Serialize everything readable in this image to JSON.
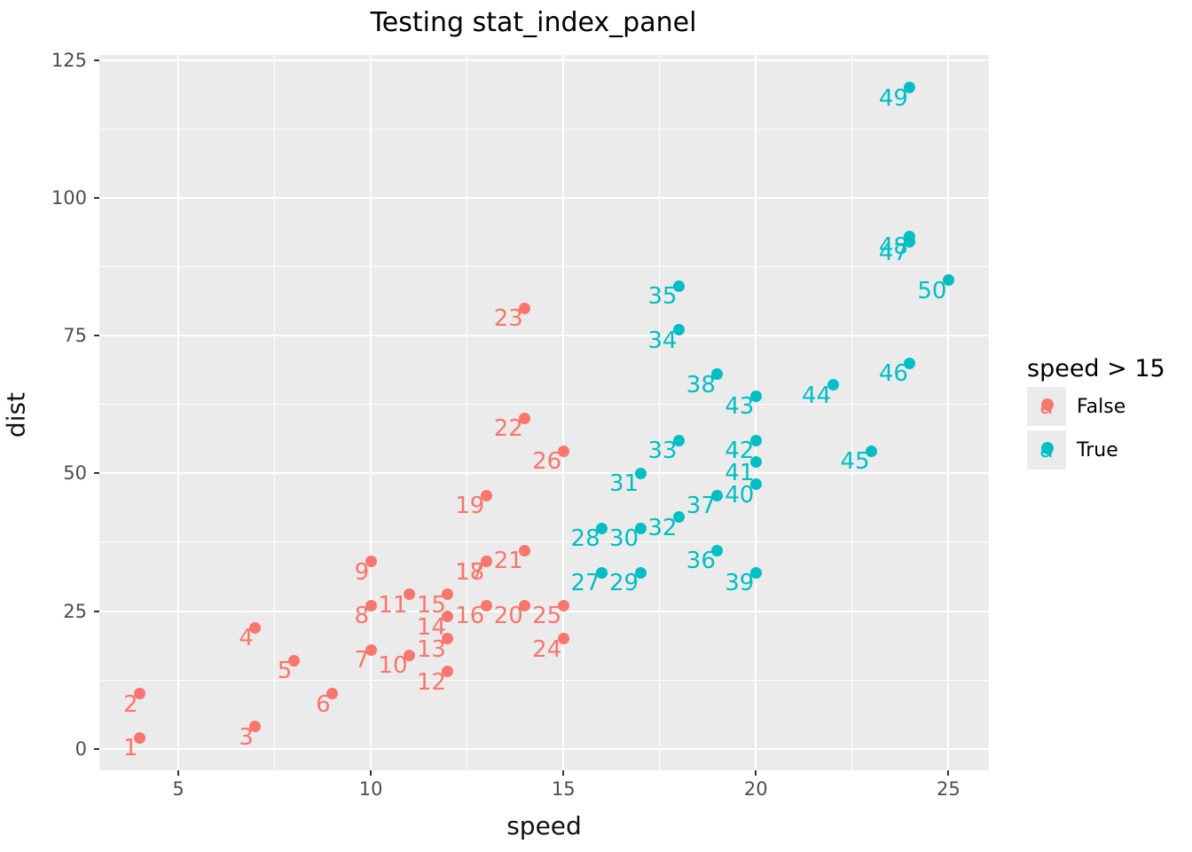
{
  "title": "Testing stat_index_panel",
  "legend": {
    "title": "speed > 15",
    "key_glyph": "a"
  },
  "colors": {
    "false_group": "#F8766D",
    "true_group": "#00BFC4",
    "panel_background": "#EBEBEB",
    "gridline": "#FFFFFF",
    "tick_text": "#4D4D4D",
    "tick_mark": "#333333"
  },
  "chart_data": {
    "type": "scatter",
    "title": "Testing stat_index_panel",
    "xlabel": "speed",
    "ylabel": "dist",
    "xlim": [
      2.95,
      26.05
    ],
    "ylim": [
      -3.9,
      125.9
    ],
    "x_ticks": [
      5,
      10,
      15,
      20,
      25
    ],
    "y_ticks": [
      0,
      25,
      50,
      75,
      100,
      125
    ],
    "x_minor_ticks": [
      7.5,
      12.5,
      17.5,
      22.5
    ],
    "y_minor_ticks": [
      12.5,
      37.5,
      62.5,
      87.5,
      112.5
    ],
    "grid": true,
    "legend_position": "right",
    "legend_title": "speed > 15",
    "point_format": [
      "index_label",
      "speed",
      "dist"
    ],
    "series": [
      {
        "name": "False",
        "color": "#F8766D",
        "points": [
          [
            1,
            4,
            2
          ],
          [
            2,
            4,
            10
          ],
          [
            3,
            7,
            4
          ],
          [
            4,
            7,
            22
          ],
          [
            5,
            8,
            16
          ],
          [
            6,
            9,
            10
          ],
          [
            7,
            10,
            18
          ],
          [
            8,
            10,
            26
          ],
          [
            9,
            10,
            34
          ],
          [
            10,
            11,
            17
          ],
          [
            11,
            11,
            28
          ],
          [
            12,
            12,
            14
          ],
          [
            13,
            12,
            20
          ],
          [
            14,
            12,
            24
          ],
          [
            15,
            12,
            28
          ],
          [
            16,
            13,
            26
          ],
          [
            17,
            13,
            34
          ],
          [
            18,
            13,
            34
          ],
          [
            19,
            13,
            46
          ],
          [
            20,
            14,
            26
          ],
          [
            21,
            14,
            36
          ],
          [
            22,
            14,
            60
          ],
          [
            23,
            14,
            80
          ],
          [
            24,
            15,
            20
          ],
          [
            25,
            15,
            26
          ],
          [
            26,
            15,
            54
          ]
        ]
      },
      {
        "name": "True",
        "color": "#00BFC4",
        "points": [
          [
            27,
            16,
            32
          ],
          [
            28,
            16,
            40
          ],
          [
            29,
            17,
            32
          ],
          [
            30,
            17,
            40
          ],
          [
            31,
            17,
            50
          ],
          [
            32,
            18,
            42
          ],
          [
            33,
            18,
            56
          ],
          [
            34,
            18,
            76
          ],
          [
            35,
            18,
            84
          ],
          [
            36,
            19,
            36
          ],
          [
            37,
            19,
            46
          ],
          [
            38,
            19,
            68
          ],
          [
            39,
            20,
            32
          ],
          [
            40,
            20,
            48
          ],
          [
            41,
            20,
            52
          ],
          [
            42,
            20,
            56
          ],
          [
            43,
            20,
            64
          ],
          [
            44,
            22,
            66
          ],
          [
            45,
            23,
            54
          ],
          [
            46,
            24,
            70
          ],
          [
            47,
            24,
            92
          ],
          [
            48,
            24,
            93
          ],
          [
            49,
            24,
            120
          ],
          [
            50,
            25,
            85
          ]
        ]
      }
    ]
  }
}
